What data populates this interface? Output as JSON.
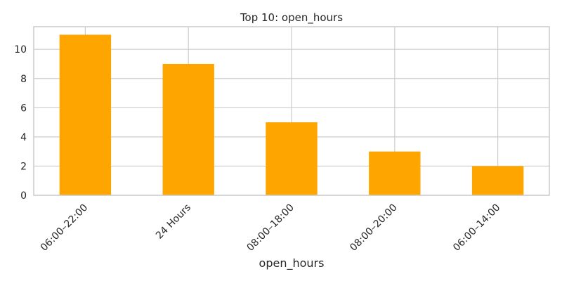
{
  "chart_data": {
    "type": "bar",
    "title": "Top 10: open_hours",
    "xlabel": "open_hours",
    "ylabel": "",
    "categories": [
      "06:00–22:00",
      "24 Hours",
      "08:00–18:00",
      "08:00–20:00",
      "06:00–14:00"
    ],
    "values": [
      11,
      9,
      5,
      3,
      2
    ],
    "ylim": [
      0,
      11.55
    ],
    "yticks": [
      0,
      2,
      4,
      6,
      8,
      10
    ],
    "grid": true,
    "legend": "none",
    "bar_color": "#ffa500",
    "grid_color": "#cccccc",
    "spine_color": "#cccccc"
  }
}
